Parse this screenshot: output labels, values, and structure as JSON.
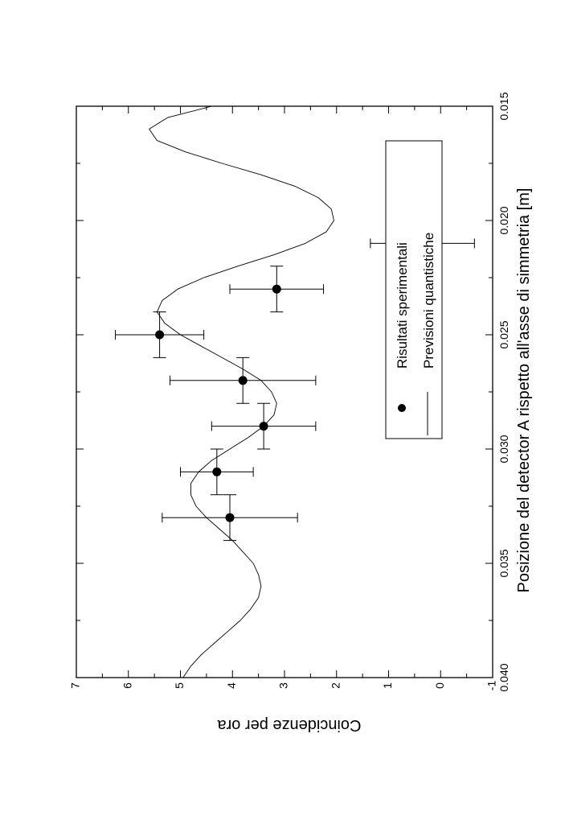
{
  "chart_data": {
    "type": "scatter",
    "orientation": "rotated 90 degrees clockwise",
    "xlabel": "Posizione del detector A rispetto all'asse di simmetria [m]",
    "ylabel": "Coincidenze per ora",
    "xlim": [
      0.015,
      0.04
    ],
    "ylim": [
      -1,
      7
    ],
    "x_ticks": [
      "0.015",
      "0.020",
      "0.025",
      "0.030",
      "0.035",
      "0.040"
    ],
    "y_ticks": [
      "-1",
      "0",
      "1",
      "2",
      "3",
      "4",
      "5",
      "6",
      "7"
    ],
    "legend": {
      "placement": "top-right",
      "entries": [
        "Risultati sperimentali",
        "Previsioni quantistiche"
      ]
    },
    "series": [
      {
        "name": "Risultati sperimentali",
        "kind": "points-with-errorbars",
        "points": [
          {
            "x": 0.021,
            "y": 0.35,
            "xerr": 0.001,
            "yerr": 1.0
          },
          {
            "x": 0.023,
            "y": 3.15,
            "xerr": 0.001,
            "yerr": 0.9
          },
          {
            "x": 0.025,
            "y": 5.4,
            "xerr": 0.001,
            "yerr": 0.85
          },
          {
            "x": 0.027,
            "y": 3.8,
            "xerr": 0.001,
            "yerr": 1.4
          },
          {
            "x": 0.029,
            "y": 3.4,
            "xerr": 0.001,
            "yerr": 1.0
          },
          {
            "x": 0.031,
            "y": 4.3,
            "xerr": 0.001,
            "yerr": 0.7
          },
          {
            "x": 0.033,
            "y": 4.05,
            "xerr": 0.001,
            "yerr": 1.3
          }
        ]
      },
      {
        "name": "Previsioni quantistiche",
        "kind": "line",
        "x": [
          0.015,
          0.0155,
          0.016,
          0.0165,
          0.017,
          0.0175,
          0.018,
          0.0185,
          0.019,
          0.0195,
          0.02,
          0.0205,
          0.021,
          0.0215,
          0.022,
          0.0225,
          0.023,
          0.0235,
          0.024,
          0.0245,
          0.025,
          0.0255,
          0.026,
          0.0265,
          0.027,
          0.0275,
          0.028,
          0.0285,
          0.029,
          0.0295,
          0.03,
          0.0305,
          0.031,
          0.0315,
          0.032,
          0.0325,
          0.033,
          0.0335,
          0.034,
          0.0345,
          0.035,
          0.0355,
          0.036,
          0.0365,
          0.037,
          0.0375,
          0.038,
          0.0385,
          0.039,
          0.0395,
          0.04
        ],
        "y": [
          4.4,
          5.25,
          5.6,
          5.45,
          4.9,
          4.2,
          3.45,
          2.8,
          2.35,
          2.1,
          2.05,
          2.2,
          2.6,
          3.2,
          3.9,
          4.55,
          5.05,
          5.35,
          5.45,
          5.3,
          5.0,
          4.6,
          4.2,
          3.8,
          3.45,
          3.25,
          3.15,
          3.2,
          3.4,
          3.7,
          4.05,
          4.4,
          4.65,
          4.8,
          4.8,
          4.7,
          4.5,
          4.25,
          4.0,
          3.8,
          3.6,
          3.5,
          3.45,
          3.5,
          3.65,
          3.85,
          4.1,
          4.35,
          4.6,
          4.8,
          4.95
        ]
      }
    ]
  }
}
